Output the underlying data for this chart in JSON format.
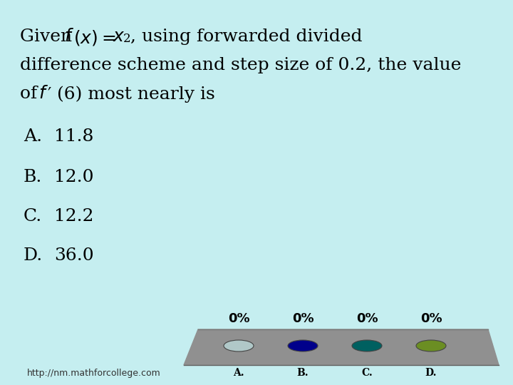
{
  "background_color": "#c5eef0",
  "options": [
    {
      "letter": "A.",
      "value": "11.8"
    },
    {
      "letter": "B.",
      "value": "12.0"
    },
    {
      "letter": "C.",
      "value": "12.2"
    },
    {
      "letter": "D.",
      "value": "36.0"
    }
  ],
  "percentages": [
    "0%",
    "0%",
    "0%",
    "0%"
  ],
  "option_labels": [
    "A.",
    "B.",
    "C.",
    "D."
  ],
  "oval_colors": [
    "#b0c8c8",
    "#00008b",
    "#006060",
    "#6b8e23"
  ],
  "table_color": "#909090",
  "table_color_dark": "#787878",
  "website": "http://nm.mathforcollege.com",
  "font_size_main": 18,
  "font_size_options": 18,
  "font_size_percent": 13,
  "font_size_labels": 10,
  "font_size_website": 9
}
